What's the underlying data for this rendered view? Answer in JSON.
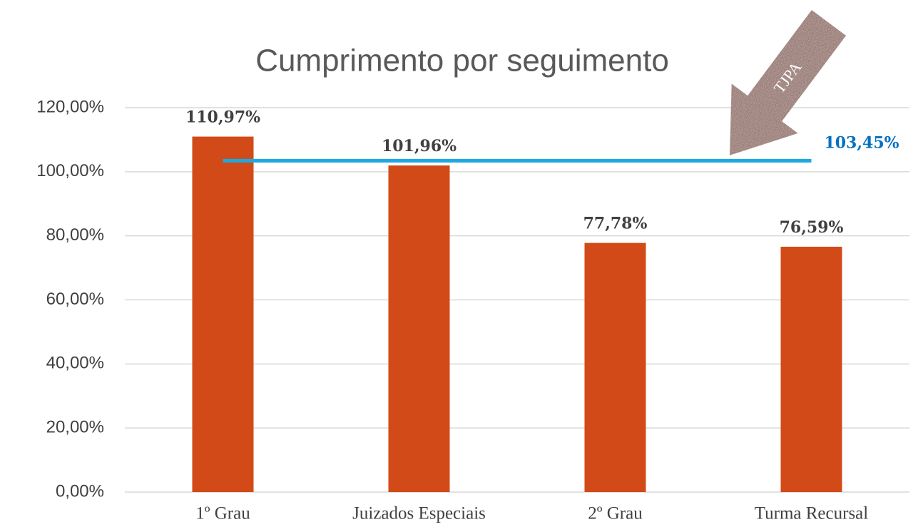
{
  "chart_data": {
    "type": "bar",
    "title": "Cumprimento por seguimento",
    "categories": [
      "1º Grau",
      "Juizados Especiais",
      "2º Grau",
      "Turma Recursal"
    ],
    "values": [
      110.97,
      101.96,
      77.78,
      76.59
    ],
    "value_labels": [
      "110,97%",
      "101,96%",
      "77,78%",
      "76,59%"
    ],
    "color": "#d24a17",
    "ylim": [
      0,
      120
    ],
    "yticks": [
      {
        "value": 0,
        "label": "0,00%"
      },
      {
        "value": 20,
        "label": "20,00%"
      },
      {
        "value": 40,
        "label": "40,00%"
      },
      {
        "value": 60,
        "label": "60,00%"
      },
      {
        "value": 80,
        "label": "80,00%"
      },
      {
        "value": 100,
        "label": "100,00%"
      },
      {
        "value": 120,
        "label": "120,00%"
      }
    ],
    "grid": true,
    "reference_line": {
      "value": 103.45,
      "label": "103,45%",
      "color": "#1fa8e0",
      "label_color": "#0070c0"
    },
    "annotation": "TJPA"
  }
}
